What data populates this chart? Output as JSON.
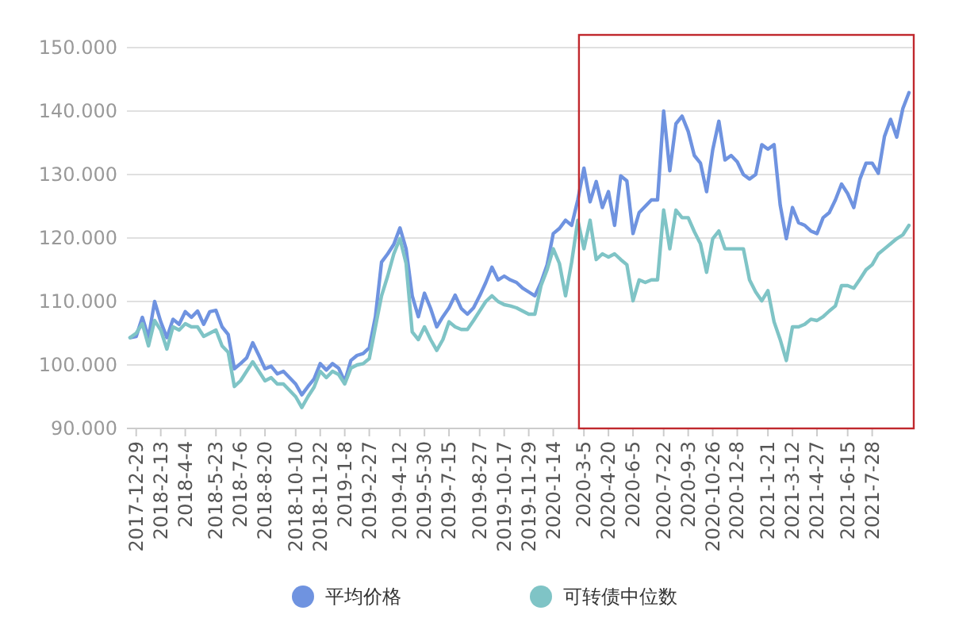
{
  "chart_data": {
    "type": "line",
    "categories": [
      null,
      "2017-12-29",
      null,
      null,
      null,
      "2018-2-13",
      null,
      null,
      null,
      "2018-4-4",
      null,
      null,
      null,
      null,
      "2018-5-23",
      null,
      null,
      null,
      "2018-7-6",
      null,
      null,
      null,
      "2018-8-20",
      null,
      null,
      null,
      null,
      "2018-10-10",
      null,
      null,
      null,
      "2018-11-22",
      null,
      null,
      null,
      "2019-1-8",
      null,
      null,
      null,
      "2019-2-27",
      null,
      null,
      null,
      null,
      "2019-4-12",
      null,
      null,
      null,
      "2019-5-30",
      null,
      null,
      null,
      "2019-7-15",
      null,
      null,
      null,
      null,
      "2019-8-27",
      null,
      null,
      null,
      "2019-10-17",
      null,
      null,
      null,
      "2019-11-29",
      null,
      null,
      null,
      "2020-1-14",
      null,
      null,
      null,
      null,
      "2020-3-5",
      null,
      null,
      null,
      "2020-4-20",
      null,
      null,
      null,
      "2020-6-5",
      null,
      null,
      null,
      null,
      "2020-7-22",
      null,
      null,
      null,
      "2020-9-3",
      null,
      null,
      null,
      "2020-10-26",
      null,
      null,
      null,
      "2020-12-8",
      null,
      null,
      null,
      null,
      "2021-1-21",
      null,
      null,
      null,
      "2021-3-12",
      null,
      null,
      null,
      "2021-4-27",
      null,
      null,
      null,
      null,
      "2021-6-15",
      null,
      null,
      null,
      "2021-7-28",
      null,
      null,
      null,
      null,
      null,
      null
    ],
    "series": [
      {
        "name": "平均价格",
        "color": "#6f93e0",
        "values": [
          104.3,
          104.5,
          107.5,
          104.3,
          110,
          106.8,
          104.3,
          107.2,
          106.4,
          108.4,
          107.5,
          108.5,
          106.4,
          108.4,
          108.6,
          106,
          104.8,
          99.4,
          100.2,
          101.1,
          103.5,
          101.5,
          99.4,
          99.8,
          98.6,
          99,
          98,
          97,
          95.3,
          96.6,
          97.8,
          100.2,
          99.2,
          100.2,
          99.5,
          97.4,
          100.7,
          101.5,
          101.8,
          102.7,
          107.6,
          116.2,
          117.5,
          119,
          121.6,
          118.3,
          110.9,
          107.6,
          111.3,
          108.9,
          106,
          107.6,
          109,
          111,
          108.9,
          108,
          109,
          110.9,
          113,
          115.4,
          113.4,
          114,
          113.4,
          113,
          112.1,
          111.5,
          110.9,
          113,
          115.8,
          120.7,
          121.5,
          122.8,
          122,
          126,
          131,
          125.7,
          128.9,
          124.8,
          127.3,
          122,
          129.8,
          129,
          120.7,
          124,
          125,
          126,
          126,
          140,
          130.6,
          138,
          139.2,
          136.8,
          133,
          131.8,
          127.3,
          133.9,
          138.4,
          132.3,
          133,
          132,
          130,
          129.3,
          130,
          134.7,
          134,
          134.7,
          125.2,
          119.9,
          124.8,
          122.4,
          122,
          121.1,
          120.7,
          123.2,
          124,
          126,
          128.5,
          127,
          124.8,
          129.3,
          131.8,
          131.8,
          130.2,
          136,
          138.7,
          135.9,
          140.4,
          142.9
        ]
      },
      {
        "name": "可转债中位数",
        "color": "#7fc4c6",
        "values": [
          104.3,
          105,
          106.5,
          103,
          107,
          105.5,
          102.5,
          106,
          105.5,
          106.5,
          106,
          106,
          104.5,
          105,
          105.5,
          103,
          102,
          96.6,
          97.5,
          99,
          100.5,
          99,
          97.5,
          98,
          97,
          97,
          96,
          95,
          93.3,
          95,
          96.5,
          99,
          98,
          99,
          98.5,
          97,
          99.5,
          100,
          100.2,
          101,
          106,
          110.9,
          114,
          117.5,
          119.9,
          116,
          105.2,
          104,
          106,
          104,
          102.3,
          104,
          106.8,
          106,
          105.6,
          105.6,
          107,
          108.5,
          110,
          110.9,
          110,
          109.5,
          109.3,
          109,
          108.5,
          108,
          108,
          112.5,
          115,
          118.3,
          116,
          110.9,
          116.2,
          122.8,
          118.3,
          122.8,
          116.6,
          117.5,
          117,
          117.5,
          116.6,
          115.8,
          110.1,
          113.4,
          113,
          113.4,
          113.4,
          124.4,
          118.3,
          124.4,
          123.2,
          123.2,
          121,
          119.1,
          114.6,
          119.9,
          121.1,
          118.3,
          118.3,
          118.3,
          118.3,
          113.4,
          111.5,
          110.1,
          111.7,
          106.8,
          104,
          100.7,
          106,
          106,
          106.4,
          107.2,
          107,
          107.6,
          108.5,
          109.3,
          112.5,
          112.5,
          112.1,
          113.5,
          115,
          115.8,
          117.5,
          118.3,
          119.1,
          119.9,
          120.5,
          122
        ]
      }
    ],
    "ylim": [
      90,
      150
    ],
    "yticks": [
      {
        "value": 90,
        "label": "90.000"
      },
      {
        "value": 100,
        "label": "100.000"
      },
      {
        "value": 110,
        "label": "110.000"
      },
      {
        "value": 120,
        "label": "120.000"
      },
      {
        "value": 130,
        "label": "130.000"
      },
      {
        "value": 140,
        "label": "140.000"
      },
      {
        "value": 150,
        "label": "150.000"
      }
    ],
    "grid": "y",
    "legend": "bottom",
    "marker": "none",
    "line_style": "solid"
  }
}
